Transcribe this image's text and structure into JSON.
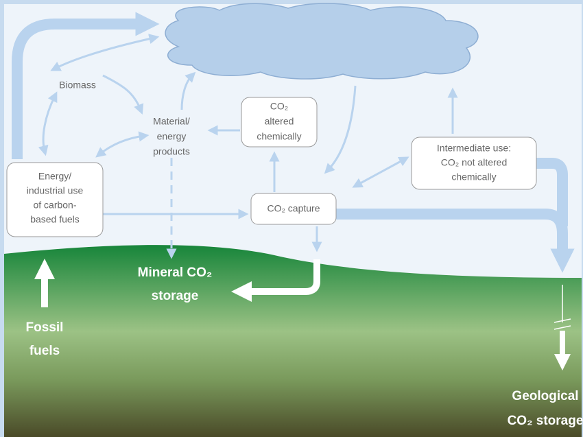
{
  "nodes": [
    {
      "lines": [
        "Biomass"
      ]
    },
    {
      "lines": [
        "Material/",
        "energy",
        "products"
      ]
    },
    {
      "lines": [
        "CO₂",
        "altered",
        "chemically"
      ]
    },
    {
      "lines": [
        "Intermediate use:",
        "CO₂ not altered",
        "chemically"
      ]
    },
    {
      "lines": [
        "Energy/",
        "industrial use",
        "of carbon-",
        "based fuels"
      ]
    },
    {
      "lines": [
        "CO₂ capture"
      ]
    },
    {
      "lines": [
        "Mineral CO₂",
        "storage"
      ]
    },
    {
      "lines": [
        "Fossil",
        "fuels"
      ]
    },
    {
      "lines": [
        "Geological",
        "CO₂ storage"
      ]
    }
  ]
}
